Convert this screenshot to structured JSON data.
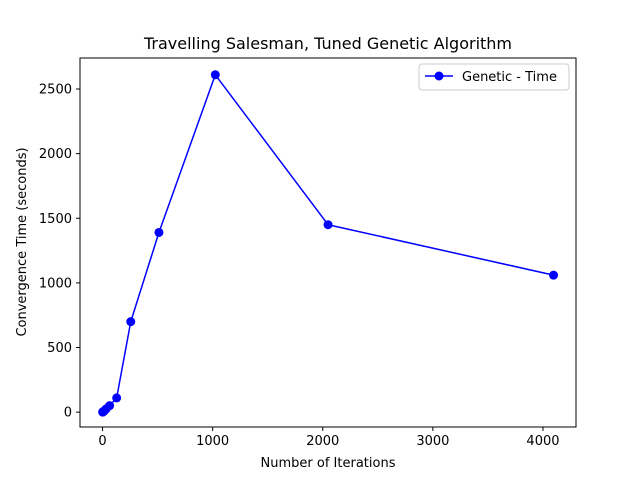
{
  "chart_data": {
    "type": "line",
    "title": "Travelling Salesman, Tuned Genetic Algorithm",
    "xlabel": "Number of Iterations",
    "ylabel": "Convergence Time (seconds)",
    "xlim": [
      -205,
      4300
    ],
    "ylim": [
      -115,
      2740
    ],
    "xticks": [
      0,
      1000,
      2000,
      3000,
      4000
    ],
    "yticks": [
      0,
      500,
      1000,
      1500,
      2000,
      2500
    ],
    "grid": false,
    "legend_position": "top-right",
    "series": [
      {
        "name": "Genetic - Time",
        "color": "#0000ff",
        "marker": "circle",
        "x": [
          1,
          2,
          4,
          8,
          16,
          32,
          64,
          128,
          256,
          512,
          1024,
          2048,
          4096
        ],
        "y": [
          0.5,
          1,
          2,
          5,
          10,
          25,
          50,
          110,
          700,
          1390,
          2610,
          1450,
          1060
        ]
      }
    ]
  }
}
